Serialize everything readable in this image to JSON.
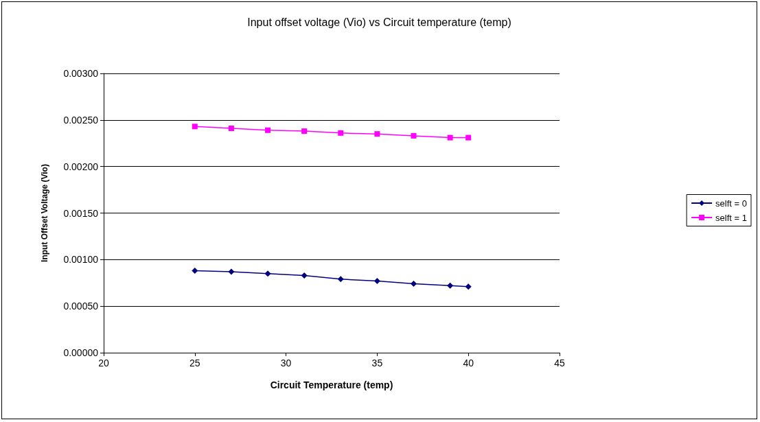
{
  "chart_data": {
    "type": "line",
    "title": "Input offset voltage (Vio) vs Circuit temperature (temp)",
    "xlabel": "Circuit Temperature (temp)",
    "ylabel": "Input Offset Voltage (Vio)",
    "x": [
      25,
      27,
      29,
      31,
      33,
      35,
      37,
      39,
      40
    ],
    "series": [
      {
        "name": "selft = 0",
        "color": "#000080",
        "marker": "diamond",
        "values": [
          0.00088,
          0.00087,
          0.00085,
          0.00083,
          0.00079,
          0.00077,
          0.00074,
          0.00072,
          0.00071
        ]
      },
      {
        "name": "selft = 1",
        "color": "#ff00ff",
        "marker": "square",
        "values": [
          0.00243,
          0.00241,
          0.00239,
          0.00238,
          0.00236,
          0.00235,
          0.00233,
          0.00231,
          0.00231
        ]
      }
    ],
    "xlim": [
      20,
      45
    ],
    "xticks": [
      20,
      25,
      30,
      35,
      40,
      45
    ],
    "ylim": [
      0,
      0.003
    ],
    "yticks": [
      {
        "value": 0,
        "label": "0.00000"
      },
      {
        "value": 0.0005,
        "label": "0.00050"
      },
      {
        "value": 0.001,
        "label": "0.00100"
      },
      {
        "value": 0.0015,
        "label": "0.00150"
      },
      {
        "value": 0.002,
        "label": "0.00200"
      },
      {
        "value": 0.0025,
        "label": "0.00250"
      },
      {
        "value": 0.003,
        "label": "0.00300"
      }
    ],
    "grid": "y",
    "legend": "right"
  }
}
